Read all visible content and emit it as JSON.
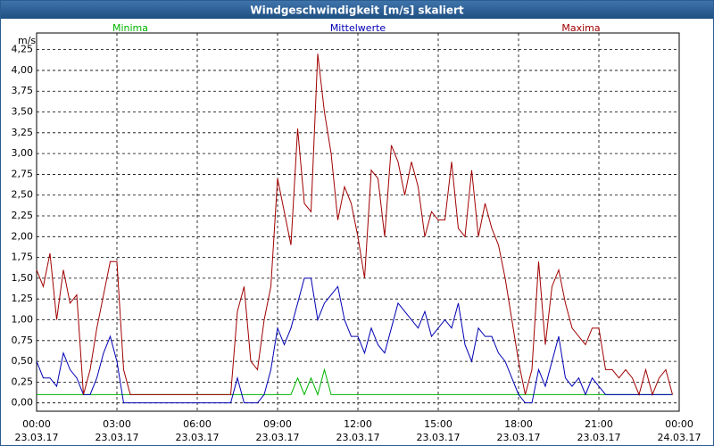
{
  "chart_data": {
    "type": "line",
    "title": "Windgeschwindigkeit [m/s] skaliert",
    "y_label": "m/s",
    "x": [
      0,
      0.25,
      0.5,
      0.75,
      1,
      1.25,
      1.5,
      1.75,
      2,
      2.25,
      2.5,
      2.75,
      3,
      3.25,
      3.5,
      3.75,
      4,
      4.25,
      4.5,
      4.75,
      5,
      5.25,
      5.5,
      5.75,
      6,
      6.25,
      6.5,
      6.75,
      7,
      7.25,
      7.5,
      7.75,
      8,
      8.25,
      8.5,
      8.75,
      9,
      9.25,
      9.5,
      9.75,
      10,
      10.25,
      10.5,
      10.75,
      11,
      11.25,
      11.5,
      11.75,
      12,
      12.25,
      12.5,
      12.75,
      13,
      13.25,
      13.5,
      13.75,
      14,
      14.25,
      14.5,
      14.75,
      15,
      15.25,
      15.5,
      15.75,
      16,
      16.25,
      16.5,
      16.75,
      17,
      17.25,
      17.5,
      17.75,
      18,
      18.25,
      18.5,
      18.75,
      19,
      19.25,
      19.5,
      19.75,
      20,
      20.25,
      20.5,
      20.75,
      21,
      21.25,
      21.5,
      21.75,
      22,
      22.25,
      22.5,
      22.75,
      23,
      23.25,
      23.5,
      23.75,
      24
    ],
    "series": [
      {
        "name": "Minima",
        "color": "#00b400",
        "values": [
          0.1,
          0.1,
          0.1,
          0.1,
          0.1,
          0.1,
          0.1,
          0.1,
          0.1,
          0.1,
          0.1,
          0.1,
          0.1,
          0.1,
          0.1,
          0.1,
          0.1,
          0.1,
          0.1,
          0.1,
          0.1,
          0.1,
          0.1,
          0.1,
          0.1,
          0.1,
          0.1,
          0.1,
          0.1,
          0.1,
          0.1,
          0.1,
          0.1,
          0.1,
          0.1,
          0.1,
          0.1,
          0.1,
          0.1,
          0.3,
          0.1,
          0.3,
          0.1,
          0.4,
          0.1,
          0.1,
          0.1,
          0.1,
          0.1,
          0.1,
          0.1,
          0.1,
          0.1,
          0.1,
          0.1,
          0.1,
          0.1,
          0.1,
          0.1,
          0.1,
          0.1,
          0.1,
          0.1,
          0.1,
          0.1,
          0.1,
          0.1,
          0.1,
          0.1,
          0.1,
          0.1,
          0.1,
          0.1,
          0.1,
          0.1,
          0.1,
          0.1,
          0.1,
          0.1,
          0.1,
          0.1,
          0.1,
          0.1,
          0.1,
          0.1,
          0.1,
          0.1,
          0.1,
          0.1,
          0.1,
          0.1,
          0.1,
          0.1,
          0.1,
          0.1,
          0.1,
          null
        ]
      },
      {
        "name": "Mittelwerte",
        "color": "#0000b4",
        "values": [
          0.5,
          0.3,
          0.3,
          0.2,
          0.6,
          0.4,
          0.3,
          0.1,
          0.1,
          0.3,
          0.6,
          0.8,
          0.5,
          0,
          0,
          0,
          0,
          0,
          0,
          0,
          0,
          0,
          0,
          0,
          0,
          0,
          0,
          0,
          0,
          0,
          0.3,
          0,
          0,
          0,
          0.1,
          0.4,
          0.9,
          0.7,
          0.9,
          1.2,
          1.5,
          1.5,
          1.0,
          1.2,
          1.3,
          1.4,
          1.0,
          0.8,
          0.8,
          0.6,
          0.9,
          0.7,
          0.6,
          0.9,
          1.2,
          1.1,
          1.0,
          0.9,
          1.1,
          0.8,
          0.9,
          1.0,
          0.9,
          1.2,
          0.7,
          0.5,
          0.9,
          0.8,
          0.8,
          0.6,
          0.5,
          0.3,
          0.1,
          0,
          0,
          0.4,
          0.2,
          0.5,
          0.8,
          0.3,
          0.2,
          0.3,
          0.1,
          0.3,
          0.2,
          0.1,
          0.1,
          0.1,
          0.1,
          0.1,
          0.1,
          0.1,
          0.1,
          0.1,
          0.1,
          0.1,
          null
        ]
      },
      {
        "name": "Maxima",
        "color": "#a00000",
        "values": [
          1.6,
          1.4,
          1.8,
          1.0,
          1.6,
          1.2,
          1.3,
          0.1,
          0.4,
          0.9,
          1.3,
          1.7,
          1.7,
          0.4,
          0.1,
          0.1,
          0.1,
          0.1,
          0.1,
          0.1,
          0.1,
          0.1,
          0.1,
          0.1,
          0.1,
          0.1,
          0.1,
          0.1,
          0.1,
          0.1,
          1.1,
          1.4,
          0.5,
          0.4,
          1.0,
          1.4,
          2.7,
          2.3,
          1.9,
          3.3,
          2.4,
          2.3,
          4.2,
          3.5,
          3.0,
          2.2,
          2.6,
          2.4,
          2.0,
          1.5,
          2.8,
          2.7,
          2.0,
          3.1,
          2.9,
          2.5,
          2.9,
          2.6,
          2.0,
          2.3,
          2.2,
          2.2,
          2.9,
          2.1,
          2.0,
          2.8,
          2.0,
          2.4,
          2.1,
          1.9,
          1.5,
          1.0,
          0.5,
          0.1,
          0.4,
          1.7,
          0.7,
          1.4,
          1.6,
          1.2,
          0.9,
          0.8,
          0.7,
          0.9,
          0.9,
          0.4,
          0.4,
          0.3,
          0.4,
          0.3,
          0.1,
          0.4,
          0.1,
          0.3,
          0.4,
          0.1,
          null
        ]
      }
    ],
    "xlim": [
      0,
      24
    ],
    "xticks": [
      {
        "value": 0,
        "label": "00:00"
      },
      {
        "value": 3,
        "label": "03:00"
      },
      {
        "value": 6,
        "label": "06:00"
      },
      {
        "value": 9,
        "label": "09:00"
      },
      {
        "value": 12,
        "label": "12:00"
      },
      {
        "value": 15,
        "label": "15:00"
      },
      {
        "value": 18,
        "label": "18:00"
      },
      {
        "value": 21,
        "label": "21:00"
      },
      {
        "value": 24,
        "label": "00:00"
      }
    ],
    "xtick_dates": [
      "23.03.17",
      "23.03.17",
      "23.03.17",
      "23.03.17",
      "23.03.17",
      "23.03.17",
      "23.03.17",
      "23.03.17",
      "24.03.17"
    ],
    "ylim": [
      -0.1,
      4.45
    ],
    "yticks": [
      {
        "value": 0,
        "label": "0,00"
      },
      {
        "value": 0.25,
        "label": "0,25"
      },
      {
        "value": 0.5,
        "label": "0,50"
      },
      {
        "value": 0.75,
        "label": "0,75"
      },
      {
        "value": 1,
        "label": "1,00"
      },
      {
        "value": 1.25,
        "label": "1,25"
      },
      {
        "value": 1.5,
        "label": "1,50"
      },
      {
        "value": 1.75,
        "label": "1,75"
      },
      {
        "value": 2,
        "label": "2,00"
      },
      {
        "value": 2.25,
        "label": "2,25"
      },
      {
        "value": 2.5,
        "label": "2,50"
      },
      {
        "value": 2.75,
        "label": "2,75"
      },
      {
        "value": 3,
        "label": "3,00"
      },
      {
        "value": 3.25,
        "label": "3,25"
      },
      {
        "value": 3.5,
        "label": "3,50"
      },
      {
        "value": 3.75,
        "label": "3,75"
      },
      {
        "value": 4,
        "label": "4,00"
      },
      {
        "value": 4.25,
        "label": "4,25"
      }
    ],
    "grid": true
  }
}
